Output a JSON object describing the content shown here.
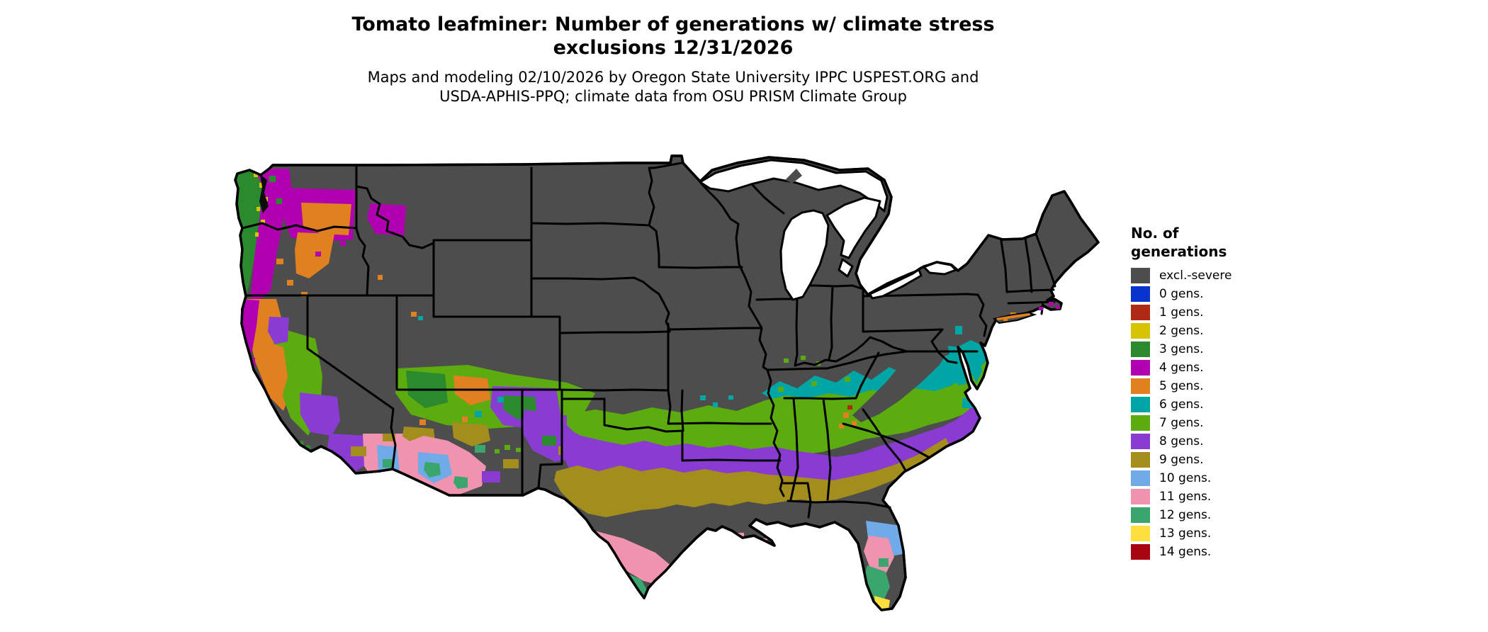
{
  "title": {
    "line1": "Tomato leafminer: Number of generations w/ climate stress",
    "line2": "exclusions 12/31/2026"
  },
  "subtitle": {
    "line1": "Maps and modeling 02/10/2026 by Oregon State University IPPC USPEST.ORG and",
    "line2": "USDA-APHIS-PPQ; climate data from OSU PRISM Climate Group"
  },
  "legend": {
    "title_line1": "No. of",
    "title_line2": "generations",
    "entries": [
      {
        "label": "excl.-severe",
        "color": "#4D4D4D"
      },
      {
        "label": "0 gens.",
        "color": "#0833CC"
      },
      {
        "label": "1 gens.",
        "color": "#AE2A15"
      },
      {
        "label": "2 gens.",
        "color": "#D6C400"
      },
      {
        "label": "3 gens.",
        "color": "#2B8A2E"
      },
      {
        "label": "4 gens.",
        "color": "#B000B0"
      },
      {
        "label": "5 gens.",
        "color": "#E0801E"
      },
      {
        "label": "6 gens.",
        "color": "#00A5A5"
      },
      {
        "label": "7 gens.",
        "color": "#5CAB0F"
      },
      {
        "label": "8 gens.",
        "color": "#8A3BD1"
      },
      {
        "label": "9 gens.",
        "color": "#A38D1C"
      },
      {
        "label": "10 gens.",
        "color": "#70AAE8"
      },
      {
        "label": "11 gens.",
        "color": "#F093AE"
      },
      {
        "label": "12 gens.",
        "color": "#3AA56D"
      },
      {
        "label": "13 gens.",
        "color": "#FFDF3D"
      },
      {
        "label": "14 gens.",
        "color": "#A60511"
      }
    ]
  },
  "map": {
    "background_color": "#FFFFFF",
    "land_base_color": "#4D4D4D",
    "border_color": "#000000",
    "water_color": "#FFFFFF"
  }
}
